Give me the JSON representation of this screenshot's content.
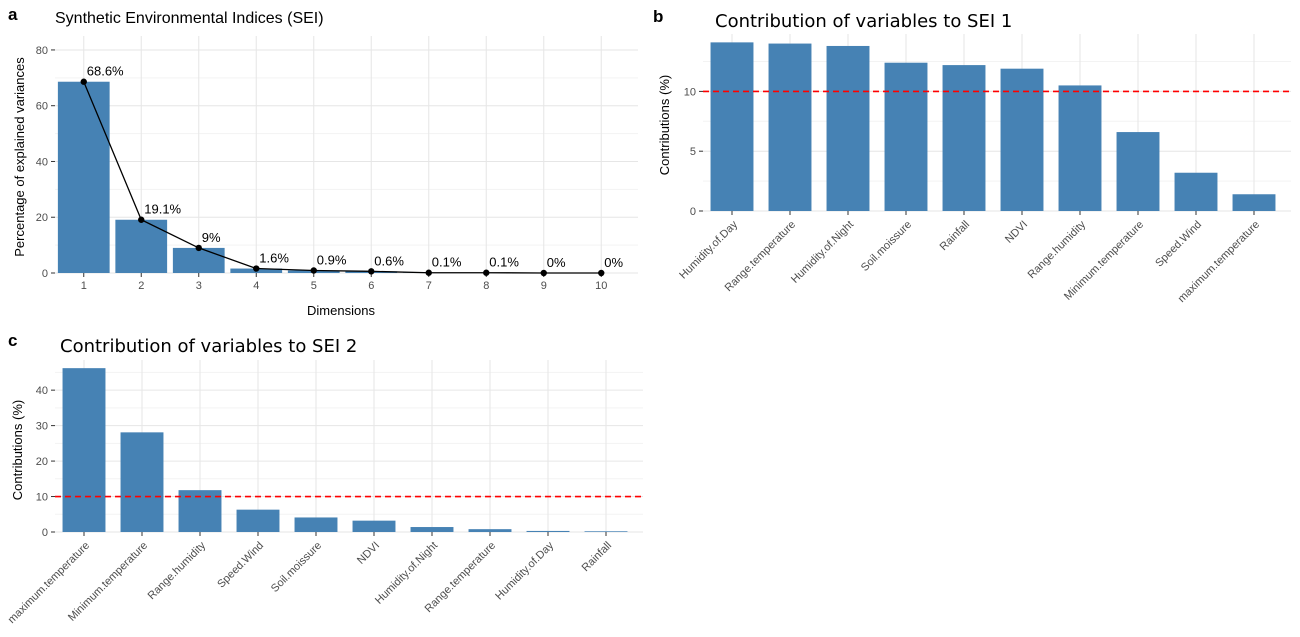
{
  "figure": {
    "panels": [
      {
        "letter": "a"
      },
      {
        "letter": "b"
      },
      {
        "letter": "c"
      }
    ]
  },
  "chart_data": [
    {
      "id": "a",
      "type": "bar",
      "title": "Synthetic Environmental Indices (SEI)",
      "xlabel": "Dimensions",
      "ylabel": "Percentage of explained variances",
      "categories": [
        "1",
        "2",
        "3",
        "4",
        "5",
        "6",
        "7",
        "8",
        "9",
        "10"
      ],
      "values": [
        68.6,
        19.1,
        9.0,
        1.6,
        0.9,
        0.6,
        0.1,
        0.1,
        0.0,
        0.0
      ],
      "labels": [
        "68.6%",
        "19.1%",
        "9%",
        "1.6%",
        "0.9%",
        "0.6%",
        "0.1%",
        "0.1%",
        "0%",
        "0%"
      ],
      "line_overlay": true,
      "ylim": [
        0,
        85
      ],
      "yticks": [
        0,
        20,
        40,
        60,
        80
      ],
      "grid": true,
      "colors": {
        "bar": "#4682b4",
        "line": "#000000"
      }
    },
    {
      "id": "b",
      "type": "bar",
      "title": "Contribution of variables to SEI 1",
      "xlabel": "",
      "ylabel": "Contributions (%)",
      "categories": [
        "Humidity.of.Day",
        "Range.temperature",
        "Humidity.of.Night",
        "Soil.moissure",
        "Rainfall",
        "NDVI",
        "Range.humidity",
        "Minimum.temperature",
        "Speed.Wind",
        "maximum.temperature"
      ],
      "values": [
        14.1,
        14.0,
        13.8,
        12.4,
        12.2,
        11.9,
        10.5,
        6.6,
        3.2,
        1.4
      ],
      "reference_line": 10,
      "ylim": [
        0,
        14.8
      ],
      "yticks": [
        0,
        5,
        10
      ],
      "grid": true,
      "colors": {
        "bar": "#4682b4",
        "reference": "#ff0000"
      }
    },
    {
      "id": "c",
      "type": "bar",
      "title": "Contribution of variables to SEI 2",
      "xlabel": "",
      "ylabel": "Contributions (%)",
      "categories": [
        "maximum.temperature",
        "Minimum.temperature",
        "Range.humidity",
        "Speed.Wind",
        "Soil.moissure",
        "NDVI",
        "Humidity.of.Night",
        "Range.temperature",
        "Humidity.of.Day",
        "Rainfall"
      ],
      "values": [
        46.2,
        28.1,
        11.8,
        6.3,
        4.1,
        3.2,
        1.4,
        0.8,
        0.3,
        0.2
      ],
      "reference_line": 10,
      "ylim": [
        0,
        48.5
      ],
      "yticks": [
        0,
        10,
        20,
        30,
        40
      ],
      "grid": true,
      "colors": {
        "bar": "#4682b4",
        "reference": "#ff0000"
      }
    }
  ]
}
